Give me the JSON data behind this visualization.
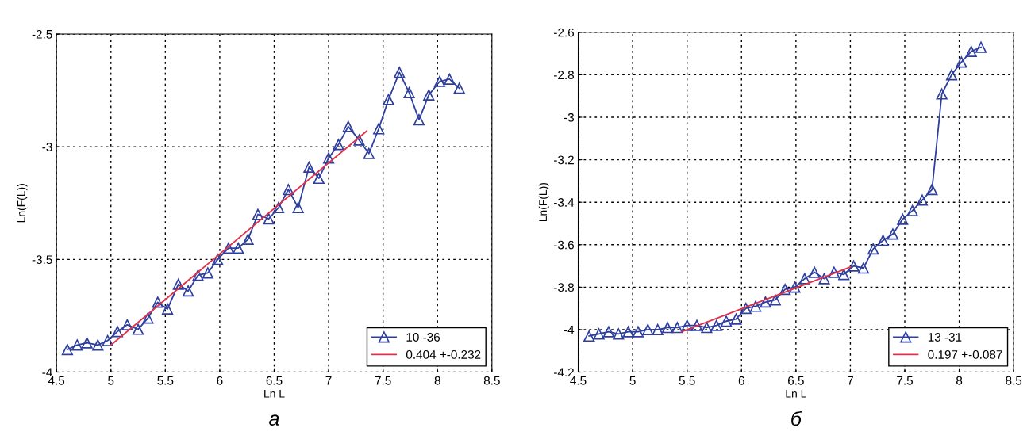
{
  "chart_data": [
    {
      "type": "line",
      "xlabel": "Ln L",
      "ylabel": "Ln(F(L))",
      "xlim": [
        4.5,
        8.5
      ],
      "xticks": [
        4.5,
        5,
        5.5,
        6,
        6.5,
        7,
        7.5,
        8,
        8.5
      ],
      "ylim": [
        -4,
        -2.5
      ],
      "yticks": [
        -4,
        -3.5,
        -3,
        -2.5
      ],
      "grid": true,
      "legend": "bottom right",
      "annotations": [
        "а"
      ],
      "series": [
        {
          "name": "10 -36",
          "color": "#2e3f9e",
          "marker": "triangle",
          "x": [
            4.6,
            4.69,
            4.78,
            4.88,
            4.97,
            5.06,
            5.15,
            5.25,
            5.34,
            5.43,
            5.52,
            5.62,
            5.71,
            5.8,
            5.89,
            5.98,
            6.08,
            6.17,
            6.26,
            6.35,
            6.45,
            6.54,
            6.63,
            6.72,
            6.82,
            6.91,
            7.0,
            7.09,
            7.18,
            7.28,
            7.37,
            7.46,
            7.55,
            7.65,
            7.74,
            7.83,
            7.92,
            8.02,
            8.11,
            8.2
          ],
          "values": [
            -3.9,
            -3.88,
            -3.87,
            -3.88,
            -3.86,
            -3.82,
            -3.79,
            -3.81,
            -3.76,
            -3.69,
            -3.72,
            -3.61,
            -3.64,
            -3.57,
            -3.56,
            -3.5,
            -3.45,
            -3.45,
            -3.41,
            -3.3,
            -3.32,
            -3.27,
            -3.19,
            -3.27,
            -3.09,
            -3.14,
            -3.05,
            -2.99,
            -2.91,
            -2.97,
            -3.03,
            -2.92,
            -2.79,
            -2.67,
            -2.76,
            -2.88,
            -2.77,
            -2.71,
            -2.7,
            -2.74
          ]
        },
        {
          "name": "0.404 +-0.232",
          "color": "#e0304a",
          "marker": "none",
          "x": [
            5.0,
            7.35
          ],
          "values": [
            -3.88,
            -2.93
          ]
        }
      ]
    },
    {
      "type": "line",
      "xlabel": "Ln L",
      "ylabel": "Ln(F(L))",
      "xlim": [
        4.5,
        8.5
      ],
      "xticks": [
        4.5,
        5,
        5.5,
        6,
        6.5,
        7,
        7.5,
        8,
        8.5
      ],
      "ylim": [
        -4.2,
        -2.6
      ],
      "yticks": [
        -4.2,
        -4,
        -3.8,
        -3.6,
        -3.4,
        -3.2,
        -3,
        -2.8,
        -2.6
      ],
      "grid": true,
      "legend": "bottom right",
      "annotations": [
        "б"
      ],
      "series": [
        {
          "name": "13 -31",
          "color": "#2e3f9e",
          "marker": "triangle",
          "x": [
            4.6,
            4.69,
            4.78,
            4.87,
            4.96,
            5.05,
            5.14,
            5.23,
            5.32,
            5.41,
            5.5,
            5.59,
            5.68,
            5.77,
            5.86,
            5.95,
            6.04,
            6.13,
            6.22,
            6.31,
            6.4,
            6.49,
            6.58,
            6.67,
            6.76,
            6.85,
            6.94,
            7.03,
            7.12,
            7.21,
            7.3,
            7.39,
            7.48,
            7.57,
            7.66,
            7.75,
            7.84,
            7.93,
            8.02,
            8.11,
            8.2
          ],
          "values": [
            -4.03,
            -4.02,
            -4.01,
            -4.02,
            -4.01,
            -4.01,
            -4.0,
            -4.0,
            -3.99,
            -3.99,
            -3.98,
            -3.98,
            -3.99,
            -3.98,
            -3.96,
            -3.95,
            -3.9,
            -3.89,
            -3.87,
            -3.86,
            -3.81,
            -3.8,
            -3.76,
            -3.73,
            -3.76,
            -3.73,
            -3.74,
            -3.7,
            -3.71,
            -3.62,
            -3.58,
            -3.55,
            -3.48,
            -3.44,
            -3.39,
            -3.34,
            -2.89,
            -2.8,
            -2.74,
            -2.69,
            -2.67
          ]
        },
        {
          "name": "0.197 +-0.087",
          "color": "#e0304a",
          "marker": "none",
          "x": [
            5.45,
            7.0
          ],
          "values": [
            -4.01,
            -3.705
          ]
        }
      ]
    }
  ]
}
